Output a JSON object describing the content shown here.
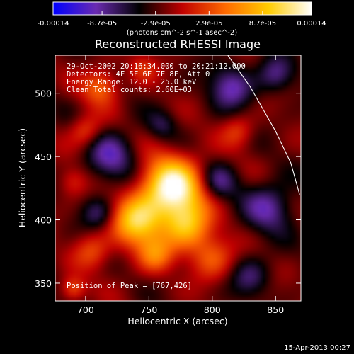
{
  "chart_data": {
    "type": "heatmap",
    "title": "Reconstructed RHESSI Image",
    "xlabel": "Heliocentric X (arcsec)",
    "ylabel": "Heliocentric Y (arcsec)",
    "xlim": [
      676,
      870
    ],
    "ylim": [
      336,
      530
    ],
    "x_ticks": [
      700,
      750,
      800,
      850
    ],
    "y_ticks": [
      350,
      400,
      450,
      500
    ],
    "colorbar": {
      "range": [
        -0.00014,
        0.00014
      ],
      "tick_values": [
        -0.00014,
        -8.7e-05,
        -2.9e-05,
        2.9e-05,
        8.7e-05,
        0.00014
      ],
      "tick_labels": [
        "-0.00014",
        "-8.7e-05",
        "-2.9e-05",
        "2.9e-05",
        "8.7e-05",
        "0.00014"
      ],
      "unit_label": "(photons cm^-2 s^-1 asec^-2)",
      "colors": [
        "#0000ff",
        "#6a2bb0",
        "#000000",
        "#c00000",
        "#ff6a00",
        "#ffcc00",
        "#ffffff"
      ]
    },
    "annotations": [
      "29-Oct-2002 20:16:34.000 to 20:21:12.000",
      "Detectors: 4F 5F 6F 7F 8F, Att 0",
      "Energy Range: 12.0 - 25.0 keV",
      "Clean     Total counts: 2.60E+03"
    ],
    "peak_label": "Position of Peak = [767,426]",
    "peak": [
      767,
      426
    ],
    "limb_curve": [
      [
        808,
        536
      ],
      [
        830,
        505
      ],
      [
        850,
        470
      ],
      [
        862,
        445
      ],
      [
        869,
        420
      ]
    ],
    "sources": [
      {
        "x": 768,
        "y": 425,
        "sigma": 17,
        "amp": 1.35
      },
      {
        "x": 740,
        "y": 398,
        "sigma": 14,
        "amp": 0.95
      },
      {
        "x": 780,
        "y": 395,
        "sigma": 13,
        "amp": 0.8
      },
      {
        "x": 755,
        "y": 372,
        "sigma": 10,
        "amp": 0.55
      },
      {
        "x": 712,
        "y": 505,
        "sigma": 10,
        "amp": 0.55
      },
      {
        "x": 700,
        "y": 470,
        "sigma": 9,
        "amp": 0.45
      },
      {
        "x": 705,
        "y": 375,
        "sigma": 10,
        "amp": 0.4
      },
      {
        "x": 800,
        "y": 370,
        "sigma": 12,
        "amp": 0.5
      },
      {
        "x": 820,
        "y": 470,
        "sigma": 9,
        "amp": 0.35
      },
      {
        "x": 690,
        "y": 430,
        "sigma": 8,
        "amp": 0.3
      },
      {
        "x": 745,
        "y": 520,
        "sigma": 8,
        "amp": 0.3
      },
      {
        "x": 690,
        "y": 345,
        "sigma": 7,
        "amp": 0.5
      },
      {
        "x": 720,
        "y": 450,
        "sigma": 14,
        "amp": -0.55
      },
      {
        "x": 845,
        "y": 410,
        "sigma": 14,
        "amp": -0.55
      },
      {
        "x": 815,
        "y": 505,
        "sigma": 12,
        "amp": -0.6
      },
      {
        "x": 850,
        "y": 515,
        "sigma": 10,
        "amp": -0.45
      },
      {
        "x": 805,
        "y": 430,
        "sigma": 10,
        "amp": -0.45
      },
      {
        "x": 710,
        "y": 405,
        "sigma": 9,
        "amp": -0.4
      },
      {
        "x": 830,
        "y": 355,
        "sigma": 11,
        "amp": -0.4
      },
      {
        "x": 760,
        "y": 475,
        "sigma": 8,
        "amp": -0.3
      }
    ]
  },
  "footer": {
    "timestamp": "15-Apr-2013 00:27"
  }
}
